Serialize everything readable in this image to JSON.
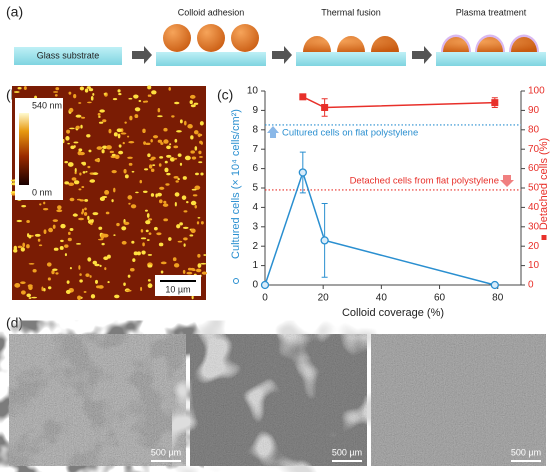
{
  "panel_labels": [
    "(a)",
    "(b)",
    "(c)",
    "(d)"
  ],
  "schematic": {
    "steps": [
      "Glass substrate",
      "Colloid adhesion",
      "Thermal fusion",
      "Plasma treatment"
    ]
  },
  "afm": {
    "colorbar_max": "540 nm",
    "colorbar_min": "0 nm",
    "scale_bar": "10 µm"
  },
  "chart_data": {
    "type": "line",
    "xlabel": "Colloid coverage (%)",
    "ylabel": "Cultured cells (× 10⁴ cells/cm²)",
    "y2label": "Detached cells (%)",
    "xlim": [
      0,
      88
    ],
    "xticks": [
      0,
      20,
      40,
      60,
      80
    ],
    "ylim": [
      0,
      10
    ],
    "yticks": [
      0,
      1,
      2,
      3,
      4,
      5,
      6,
      7,
      8,
      9,
      10
    ],
    "y2lim": [
      0,
      100
    ],
    "y2ticks": [
      0,
      10,
      20,
      30,
      40,
      50,
      60,
      70,
      80,
      90,
      100
    ],
    "series": [
      {
        "color": "#2a8fd0",
        "marker": "circle",
        "x": [
          0,
          13,
          20.5,
          79
        ],
        "values": [
          0,
          5.8,
          2.3,
          0
        ],
        "errors": [
          0,
          1.05,
          1.9,
          0
        ]
      },
      {
        "color": "#e8302a",
        "marker": "square",
        "axis": "y2",
        "x": [
          13,
          20.5,
          79
        ],
        "values": [
          97,
          91.5,
          94
        ],
        "errors": [
          0,
          4.5,
          2.5
        ]
      }
    ],
    "reference_lines": [
      {
        "label": "Cultured cells on flat polystylene",
        "value": 8.25,
        "color": "#2a8fd0"
      },
      {
        "label": "Detached cells from flat polystylene",
        "value": 49,
        "axis": "y2",
        "color": "#e8302a"
      }
    ]
  },
  "micrographs": {
    "scale_bars": [
      "500 µm",
      "500 µm",
      "500 µm"
    ]
  }
}
